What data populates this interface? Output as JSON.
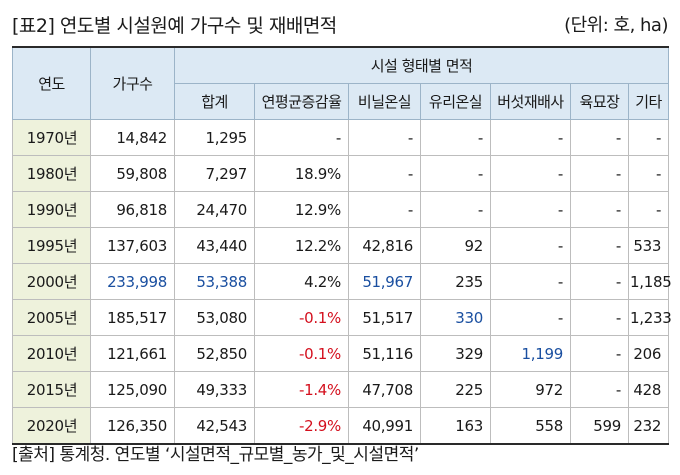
{
  "title": "[표2] 연도별 시설원예 가구수 및 재배면적",
  "unit": "(단위: 호, ha)",
  "header": {
    "year": "연도",
    "households": "가구수",
    "group": "시설 형태별 면적",
    "sub": [
      "합계",
      "연평균증감율",
      "비닐온실",
      "유리온실",
      "버섯재배사",
      "육묘장",
      "기타"
    ]
  },
  "rows": [
    {
      "year": "1970년",
      "households": "14,842",
      "total": "1,295",
      "rate": "-",
      "vinyl": "-",
      "glass": "-",
      "mushroom": "-",
      "seedling": "-",
      "other": "-"
    },
    {
      "year": "1980년",
      "households": "59,808",
      "total": "7,297",
      "rate": "18.9%",
      "vinyl": "-",
      "glass": "-",
      "mushroom": "-",
      "seedling": "-",
      "other": "-"
    },
    {
      "year": "1990년",
      "households": "96,818",
      "total": "24,470",
      "rate": "12.9%",
      "vinyl": "-",
      "glass": "-",
      "mushroom": "-",
      "seedling": "-",
      "other": "-"
    },
    {
      "year": "1995년",
      "households": "137,603",
      "total": "43,440",
      "rate": "12.2%",
      "vinyl": "42,816",
      "glass": "92",
      "mushroom": "-",
      "seedling": "-",
      "other": "533"
    },
    {
      "year": "2000년",
      "households": "233,998",
      "total": "53,388",
      "rate": "4.2%",
      "vinyl": "51,967",
      "glass": "235",
      "mushroom": "-",
      "seedling": "-",
      "other": "1,185"
    },
    {
      "year": "2005년",
      "households": "185,517",
      "total": "53,080",
      "rate": "-0.1%",
      "vinyl": "51,517",
      "glass": "330",
      "mushroom": "-",
      "seedling": "-",
      "other": "1,233"
    },
    {
      "year": "2010년",
      "households": "121,661",
      "total": "52,850",
      "rate": "-0.1%",
      "vinyl": "51,116",
      "glass": "329",
      "mushroom": "1,199",
      "seedling": "-",
      "other": "206"
    },
    {
      "year": "2015년",
      "households": "125,090",
      "total": "49,333",
      "rate": "-1.4%",
      "vinyl": "47,708",
      "glass": "225",
      "mushroom": "972",
      "seedling": "-",
      "other": "428"
    },
    {
      "year": "2020년",
      "households": "126,350",
      "total": "42,543",
      "rate": "-2.9%",
      "vinyl": "40,991",
      "glass": "163",
      "mushroom": "558",
      "seedling": "599",
      "other": "232"
    }
  ],
  "highlights": {
    "blue": [
      "4.households",
      "4.total",
      "4.vinyl",
      "5.glass",
      "6.mushroom"
    ],
    "red": [
      "5.rate",
      "6.rate",
      "7.rate",
      "8.rate"
    ]
  },
  "colors": {
    "blue": "#1a4fa0",
    "red": "#d4101e",
    "header_bg": "#dce9f4",
    "year_bg": "#eef2dc"
  },
  "source": "[출처] 통계청. 연도별 ‘시설면적_규모별_농가_및_시설면적’"
}
